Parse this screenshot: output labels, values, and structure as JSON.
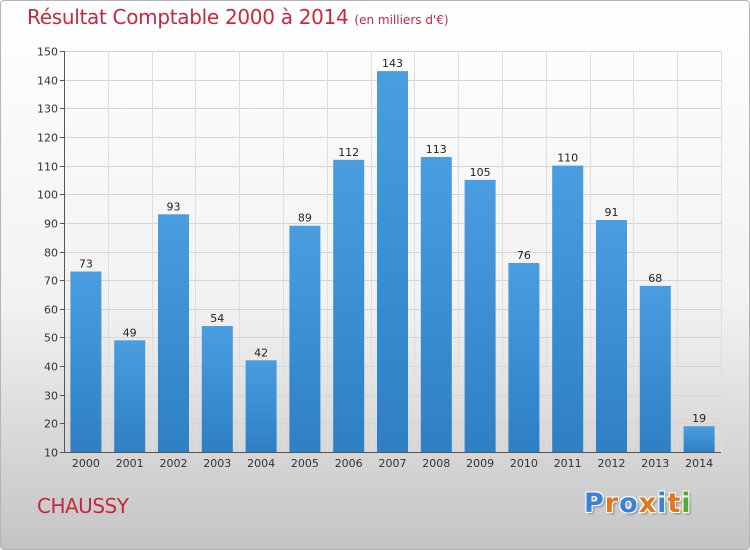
{
  "chart_data": {
    "type": "bar",
    "title": "Résultat Comptable 2000 à 2014",
    "subtitle": "(en milliers d'€)",
    "categories": [
      "2000",
      "2001",
      "2002",
      "2003",
      "2004",
      "2005",
      "2006",
      "2007",
      "2008",
      "2009",
      "2010",
      "2011",
      "2012",
      "2013",
      "2014"
    ],
    "values": [
      73,
      49,
      93,
      54,
      42,
      89,
      112,
      143,
      113,
      105,
      76,
      110,
      91,
      68,
      19
    ],
    "ylim": [
      10,
      150
    ],
    "yticks": [
      10,
      20,
      30,
      40,
      50,
      60,
      70,
      80,
      90,
      100,
      110,
      120,
      130,
      140,
      150
    ],
    "xlabel": "",
    "ylabel": "",
    "grid": true,
    "bar_color": "#4a9ee0",
    "bar_color_dark": "#2e7fc4"
  },
  "footer": {
    "commune": "CHAUSSY"
  },
  "logo": {
    "text": "Proxiti",
    "letter_colors": [
      "#3b82d6",
      "#e0761e",
      "#3b82d6",
      "#e0761e",
      "#3b82d6",
      "#e0761e",
      "#5aa82a"
    ]
  },
  "colors": {
    "title": "#c8283e",
    "commune": "#c8283e"
  }
}
